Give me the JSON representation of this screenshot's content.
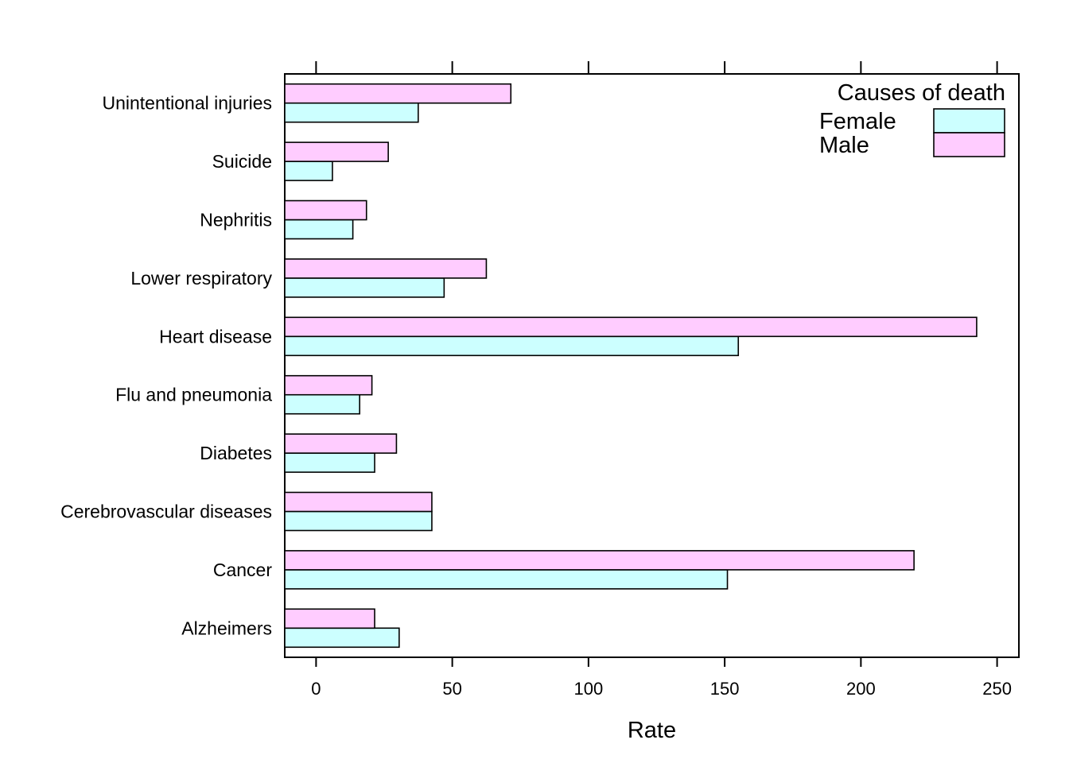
{
  "chart_data": {
    "type": "bar",
    "orientation": "horizontal",
    "categories": [
      "Alzheimers",
      "Cancer",
      "Cerebrovascular diseases",
      "Diabetes",
      "Flu and pneumonia",
      "Heart disease",
      "Lower respiratory",
      "Nephritis",
      "Suicide",
      "Unintentional injuries"
    ],
    "series": [
      {
        "name": "Female",
        "color": "#ccffff",
        "values": [
          30.5,
          151,
          42.5,
          21.5,
          16,
          155,
          47,
          13.5,
          6,
          37.5
        ]
      },
      {
        "name": "Male",
        "color": "#ffccff",
        "values": [
          21.5,
          219.5,
          42.5,
          29.5,
          20.5,
          242.5,
          62.5,
          18.5,
          26.5,
          71.5
        ]
      }
    ],
    "xlabel": "Rate",
    "ylabel": "",
    "xlim": [
      -11.5,
      258
    ],
    "xticks": [
      0,
      50,
      100,
      150,
      200,
      250
    ],
    "tick_labels": [
      "0",
      "50",
      "100",
      "150",
      "200",
      "250"
    ],
    "grid": false,
    "legend": {
      "title": "Causes of death",
      "placement": "top-right",
      "entries": [
        "Female",
        "Male"
      ]
    }
  }
}
